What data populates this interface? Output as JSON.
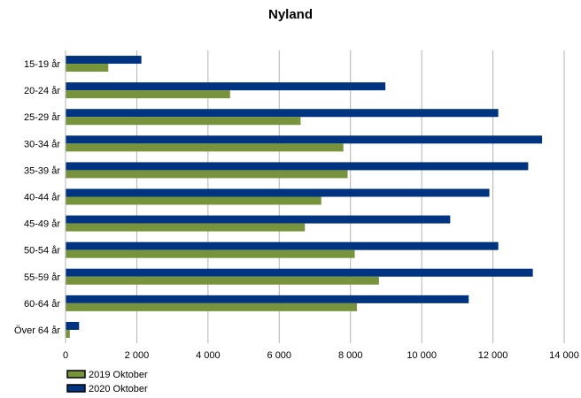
{
  "chart_data": {
    "type": "bar",
    "orientation": "horizontal",
    "title": "Nyland",
    "categories": [
      "15-19 år",
      "20-24 år",
      "25-29 år",
      "30-34 år",
      "35-39 år",
      "40-44 år",
      "45-49 år",
      "50-54 år",
      "55-59 år",
      "60-64 år",
      "Över 64 år"
    ],
    "series": [
      {
        "name": "2019 Oktober",
        "color": "#77933c",
        "values": [
          1200,
          4620,
          6600,
          7800,
          7920,
          7180,
          6720,
          8120,
          8800,
          8180,
          120
        ]
      },
      {
        "name": "2020 Oktober",
        "color": "#003380",
        "values": [
          2130,
          8980,
          12150,
          13380,
          12990,
          11900,
          10800,
          12150,
          13120,
          11320,
          380
        ]
      }
    ],
    "xlim": [
      0,
      14000
    ],
    "xticks": [
      0,
      2000,
      4000,
      6000,
      8000,
      10000,
      12000,
      14000
    ],
    "xtick_labels": [
      "0",
      "2 000",
      "4 000",
      "6 000",
      "8 000",
      "10 000",
      "12 000",
      "14 000"
    ],
    "grid": "vertical",
    "legend_position": "bottom-left"
  }
}
